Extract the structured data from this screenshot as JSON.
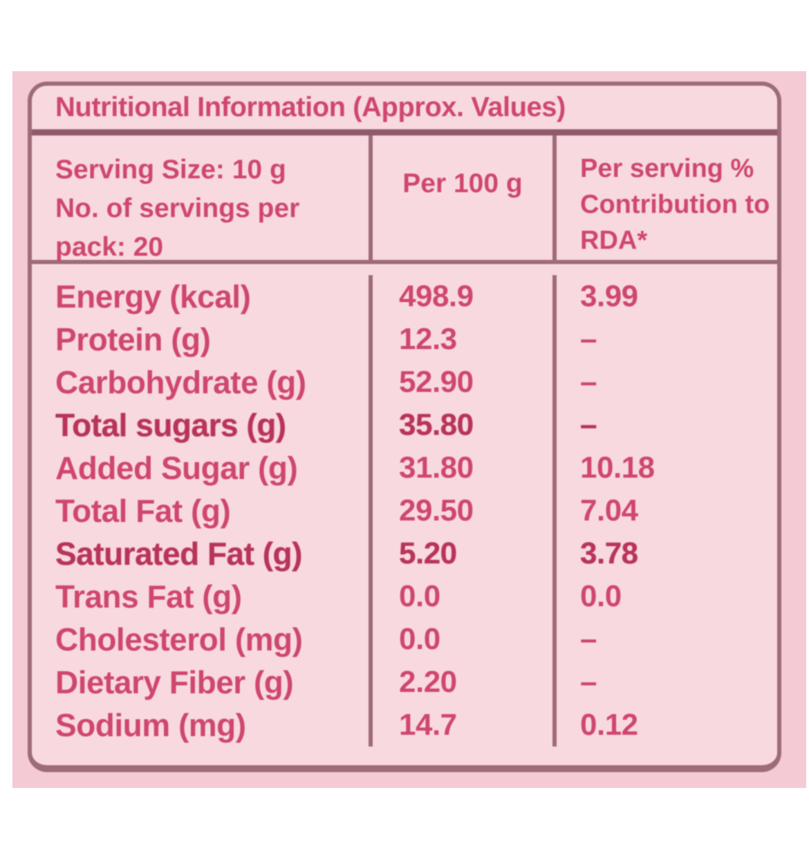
{
  "title": "Nutritional Information (Approx. Values)",
  "header": {
    "col1_lines": [
      "Serving Size: 10 g",
      "No. of servings per",
      "pack: 20"
    ],
    "col2": "Per 100 g",
    "col3_lines": [
      "Per serving %",
      "Contribution to",
      "RDA*"
    ]
  },
  "rows": [
    {
      "label": "Energy (kcal)",
      "per100": "498.9",
      "rda": "3.99"
    },
    {
      "label": "Protein (g)",
      "per100": "12.3",
      "rda": "–"
    },
    {
      "label": "Carbohydrate (g)",
      "per100": "52.90",
      "rda": "–"
    },
    {
      "label": "Total sugars (g)",
      "per100": "35.80",
      "rda": "–"
    },
    {
      "label": "Added Sugar (g)",
      "per100": "31.80",
      "rda": "10.18"
    },
    {
      "label": "Total Fat (g)",
      "per100": "29.50",
      "rda": "7.04"
    },
    {
      "label": "Saturated Fat (g)",
      "per100": "5.20",
      "rda": "3.78"
    },
    {
      "label": "Trans Fat (g)",
      "per100": "0.0",
      "rda": "0.0"
    },
    {
      "label": "Cholesterol (mg)",
      "per100": "0.0",
      "rda": "–"
    },
    {
      "label": "Dietary Fiber (g)",
      "per100": "2.20",
      "rda": "–"
    },
    {
      "label": "Sodium (mg)",
      "per100": "14.7",
      "rda": "0.12"
    }
  ],
  "colors": {
    "panel_pink": "#f4cbd4",
    "table_pink": "#f8d9e0",
    "text_pink": "#cf476d",
    "text_bold": "#b83458",
    "border_mauve": "#9e6b79"
  }
}
